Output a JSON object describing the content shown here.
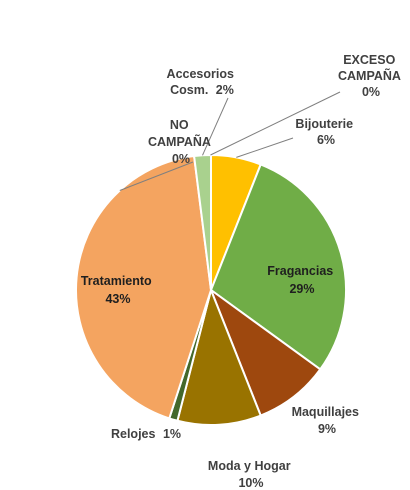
{
  "chart_data": {
    "type": "pie",
    "title": "",
    "slices": [
      {
        "name": "Bijouterie",
        "value": 6,
        "label": "6%",
        "color": "#FFC000"
      },
      {
        "name": "Fragancias",
        "value": 29,
        "label": "29%",
        "color": "#70AD47"
      },
      {
        "name": "Maquillajes",
        "value": 9,
        "label": "9%",
        "color": "#9E480E"
      },
      {
        "name": "Moda y Hogar",
        "value": 10,
        "label": "10%",
        "color": "#997300"
      },
      {
        "name": "Relojes",
        "value": 1,
        "label": "1%",
        "color": "#43682B"
      },
      {
        "name": "Tratamiento",
        "value": 43,
        "label": "43%",
        "color": "#F4A460"
      },
      {
        "name": "NO CAMPAÑA",
        "value": 0,
        "label": "0%",
        "color": "#5B9BD5"
      },
      {
        "name": "Accesorios Cosm.",
        "value": 2,
        "label": "2%",
        "color": "#A9D18E"
      },
      {
        "name": "EXCESO CAMPAÑA",
        "value": 0,
        "label": "0%",
        "color": "#264478"
      }
    ]
  }
}
